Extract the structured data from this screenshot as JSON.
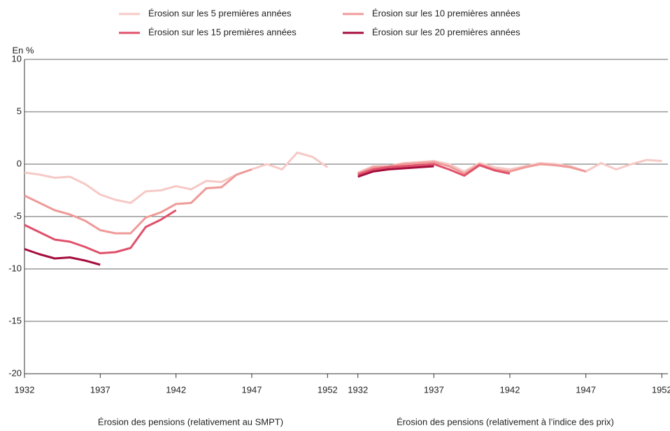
{
  "chart_data": [
    {
      "type": "line",
      "y_label": "En %",
      "x_label": "Érosion des pensions (relativement au SMPT)",
      "x": [
        1932,
        1933,
        1934,
        1935,
        1936,
        1937,
        1938,
        1939,
        1940,
        1941,
        1942,
        1943,
        1944,
        1945,
        1946,
        1947,
        1948,
        1949,
        1950,
        1951,
        1952
      ],
      "xlim": [
        1932,
        1953
      ],
      "xticks": [
        1932,
        1937,
        1942,
        1947,
        1952
      ],
      "ylim": [
        -20,
        10
      ],
      "yticks": [
        -20,
        -15,
        -10,
        -5,
        0,
        5,
        10
      ],
      "grid": true,
      "legend": "top",
      "series": [
        {
          "name": "Érosion sur les 5 premières années",
          "color": "#f6c9c6",
          "values": [
            -0.8,
            -1.0,
            -1.3,
            -1.2,
            -1.9,
            -2.9,
            -3.4,
            -3.7,
            -2.6,
            -2.5,
            -2.1,
            -2.4,
            -1.6,
            -1.7,
            -1.0,
            -0.5,
            0.0,
            -0.5,
            1.1,
            0.7,
            -0.3
          ]
        },
        {
          "name": "Érosion sur les 10 premières années",
          "color": "#ef9a98",
          "values": [
            -3.0,
            -3.7,
            -4.4,
            -4.8,
            -5.4,
            -6.3,
            -6.6,
            -6.6,
            -5.1,
            -4.6,
            -3.8,
            -3.7,
            -2.3,
            -2.2,
            -1.0,
            -0.5,
            null,
            null,
            null,
            null,
            null
          ]
        },
        {
          "name": "Érosion sur les 15 premières années",
          "color": "#e0506a",
          "values": [
            -5.8,
            -6.5,
            -7.2,
            -7.4,
            -7.9,
            -8.5,
            -8.4,
            -8.0,
            -6.0,
            -5.3,
            -4.4,
            null,
            null,
            null,
            null,
            null,
            null,
            null,
            null,
            null,
            null
          ]
        },
        {
          "name": "Érosion sur les 20 premières années",
          "color": "#a50d3c",
          "values": [
            -8.1,
            -8.6,
            -9.0,
            -8.9,
            -9.2,
            -9.6,
            null,
            null,
            null,
            null,
            null,
            null,
            null,
            null,
            null,
            null,
            null,
            null,
            null,
            null,
            null
          ]
        }
      ]
    },
    {
      "type": "line",
      "x_label": "Érosion des pensions (relativement à l’indice des prix)",
      "x": [
        1932,
        1933,
        1934,
        1935,
        1936,
        1937,
        1938,
        1939,
        1940,
        1941,
        1942,
        1943,
        1944,
        1945,
        1946,
        1947,
        1948,
        1949,
        1950,
        1951,
        1952
      ],
      "xlim": [
        1931,
        1952.4
      ],
      "xticks": [
        1932,
        1937,
        1942,
        1947,
        1952
      ],
      "ylim": [
        -20,
        10
      ],
      "yticks": [
        -20,
        -15,
        -10,
        -5,
        0,
        5,
        10
      ],
      "grid": true,
      "series": [
        {
          "color": "#f6c9c6",
          "values": [
            -0.8,
            -0.2,
            -0.2,
            0.1,
            0.2,
            0.3,
            0.0,
            -0.7,
            0.1,
            -0.3,
            -0.5,
            -0.2,
            0.1,
            0.0,
            -0.2,
            -0.7,
            0.1,
            -0.5,
            0.0,
            0.4,
            0.3
          ]
        },
        {
          "color": "#ef9a98",
          "values": [
            -0.9,
            -0.3,
            -0.2,
            0.0,
            0.1,
            0.2,
            -0.2,
            -0.9,
            0.0,
            -0.5,
            -0.7,
            -0.3,
            0.0,
            -0.1,
            -0.3,
            -0.7,
            null,
            null,
            null,
            null,
            null
          ]
        },
        {
          "color": "#e0506a",
          "values": [
            -1.0,
            -0.5,
            -0.3,
            -0.2,
            -0.1,
            0.0,
            -0.5,
            -1.1,
            -0.1,
            -0.6,
            -0.9,
            null,
            null,
            null,
            null,
            null,
            null,
            null,
            null,
            null,
            null
          ]
        },
        {
          "color": "#a50d3c",
          "values": [
            -1.2,
            -0.7,
            -0.5,
            -0.4,
            -0.3,
            -0.2,
            null,
            null,
            null,
            null,
            null,
            null,
            null,
            null,
            null,
            null,
            null,
            null,
            null,
            null,
            null
          ]
        }
      ]
    }
  ]
}
